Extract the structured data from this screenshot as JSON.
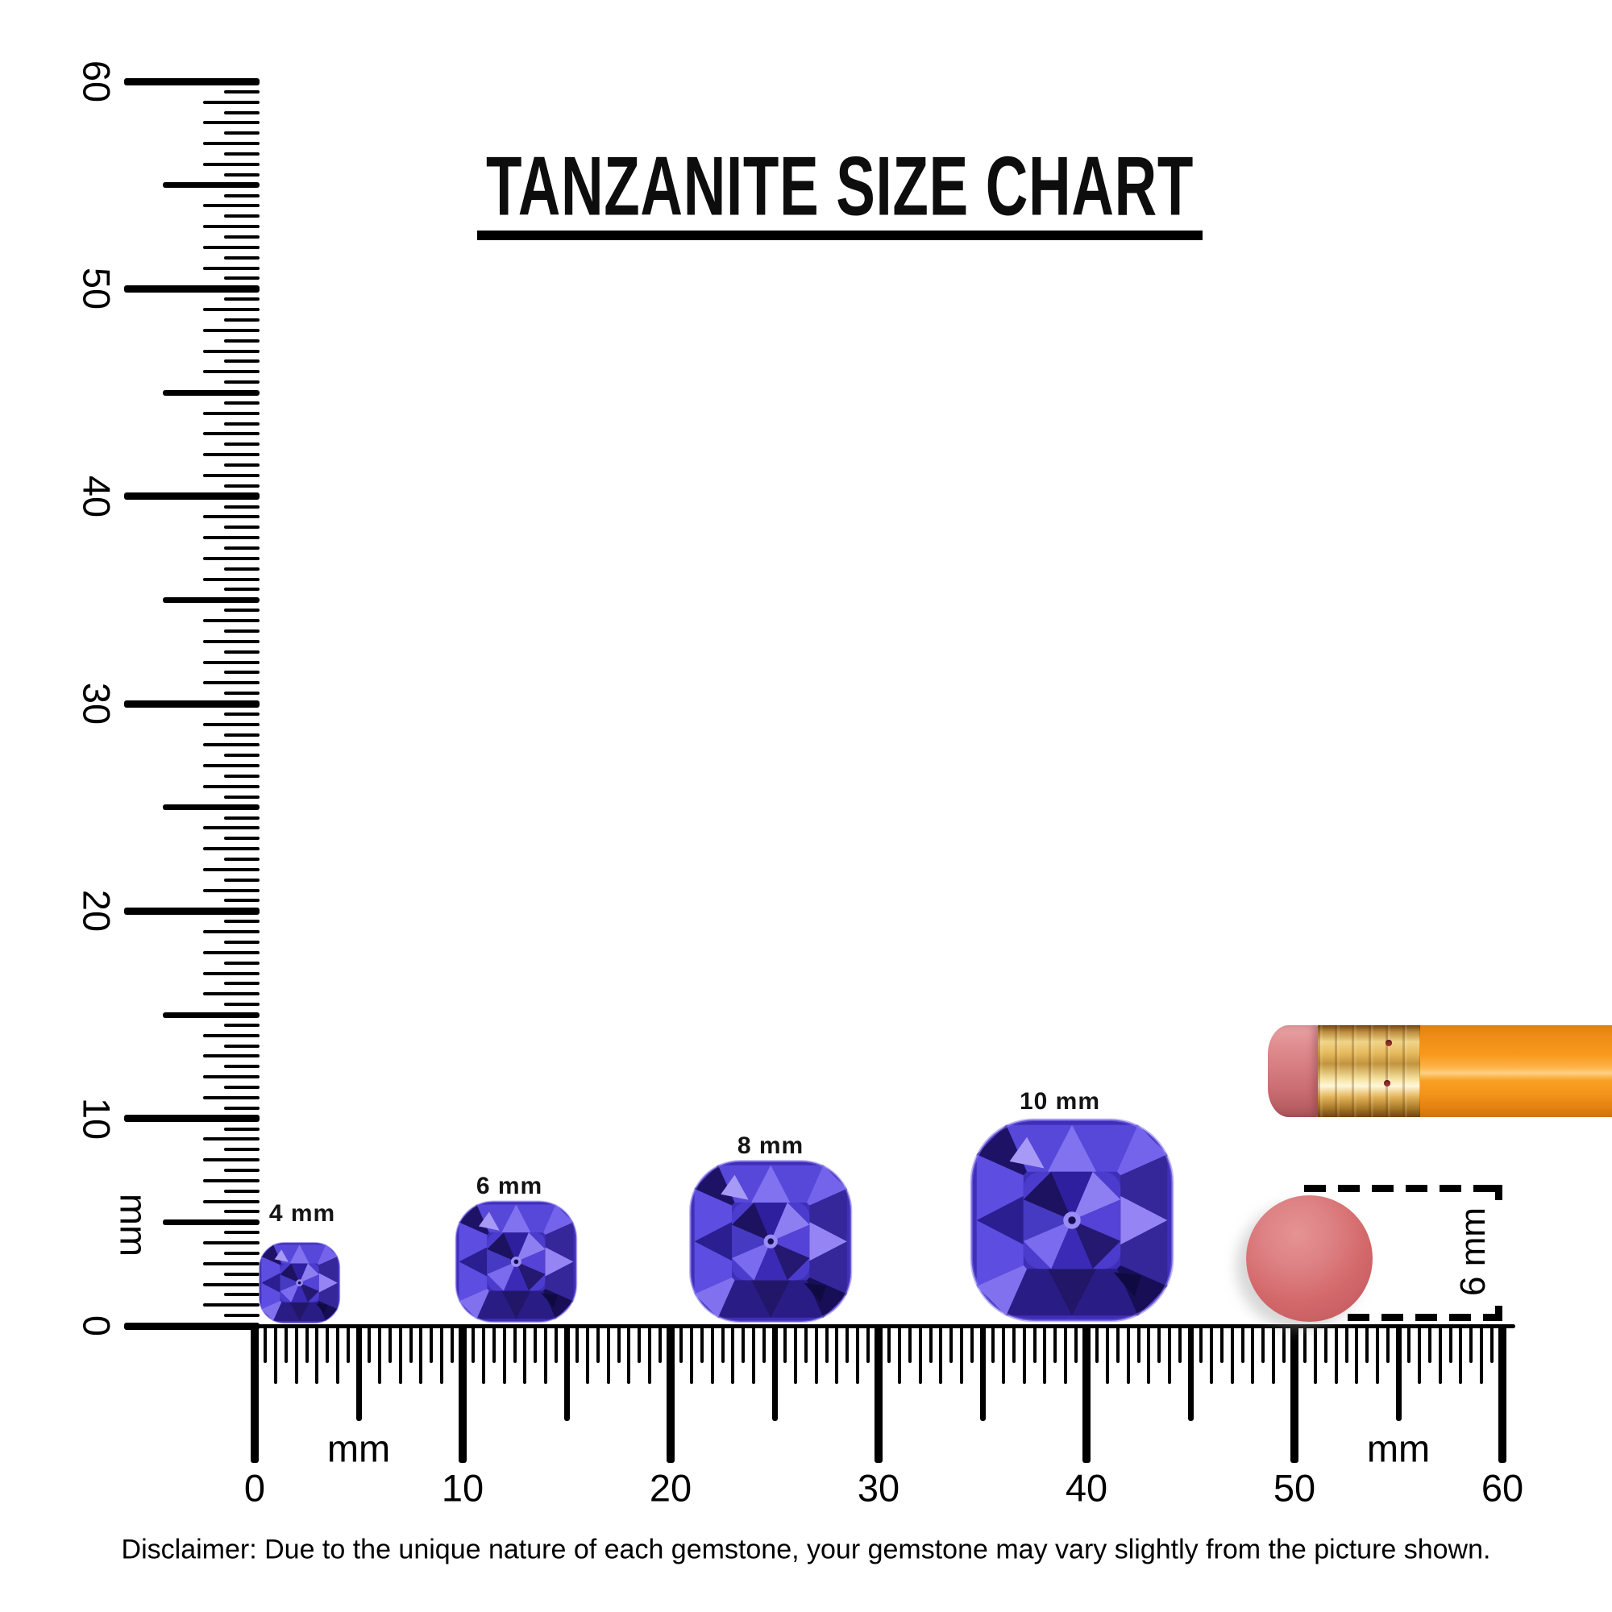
{
  "title": {
    "text": "TANZANITE SIZE CHART"
  },
  "vertical_ruler": {
    "unit_label": "mm",
    "labels": [
      "0",
      "10",
      "20",
      "30",
      "40",
      "50",
      "60"
    ]
  },
  "horizontal_ruler": {
    "unit_label_left": "mm",
    "unit_label_right": "mm",
    "labels": [
      "0",
      "10",
      "20",
      "30",
      "40",
      "50",
      "60"
    ]
  },
  "gems": [
    {
      "label": "4 mm",
      "size_mm": 4
    },
    {
      "label": "6 mm",
      "size_mm": 6
    },
    {
      "label": "8 mm",
      "size_mm": 8
    },
    {
      "label": "10 mm",
      "size_mm": 10
    }
  ],
  "eraser_reference": {
    "label": "6 mm",
    "diameter_mm": 6
  },
  "disclaimer": {
    "text": "Disclaimer: Due to the unique nature of each gemstone, your gemstone may vary slightly from the picture shown."
  },
  "colors": {
    "ink": "#000000",
    "gem_primary": "#4433c8",
    "gem_dark": "#1d1266",
    "gem_light": "#8577f2",
    "eraser_pink": "#d4696b",
    "pencil_orange": "#f8991c",
    "ferrule_gold": "#e6bb5e",
    "pencil_eraser_pink": "#d67e82"
  }
}
